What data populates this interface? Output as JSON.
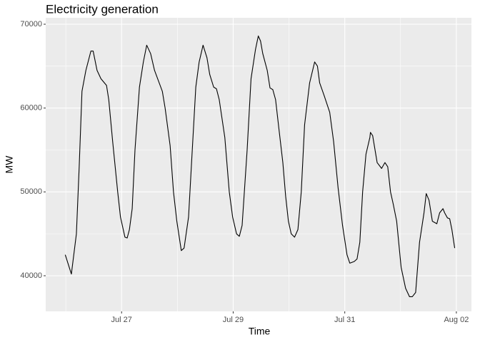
{
  "chart_data": {
    "type": "line",
    "title": "Electricity generation",
    "x_label": "Time",
    "y_label": "MW",
    "x": [
      25.99,
      26.1,
      26.19,
      26.24,
      26.29,
      26.36,
      26.45,
      26.49,
      26.56,
      26.63,
      26.73,
      26.77,
      26.84,
      26.93,
      26.98,
      27.06,
      27.1,
      27.14,
      27.19,
      27.24,
      27.32,
      27.39,
      27.45,
      27.52,
      27.59,
      27.73,
      27.78,
      27.83,
      27.87,
      27.93,
      27.99,
      28.07,
      28.12,
      28.2,
      28.25,
      28.33,
      28.39,
      28.46,
      28.53,
      28.58,
      28.65,
      28.7,
      28.75,
      28.85,
      28.93,
      28.99,
      29.06,
      29.11,
      29.16,
      29.25,
      29.32,
      29.4,
      29.45,
      29.49,
      29.53,
      29.61,
      29.66,
      29.71,
      29.76,
      29.82,
      29.89,
      29.94,
      29.99,
      30.04,
      30.1,
      30.16,
      30.22,
      30.28,
      30.37,
      30.46,
      30.51,
      30.55,
      30.63,
      30.73,
      30.8,
      30.88,
      30.96,
      31.04,
      31.09,
      31.17,
      31.22,
      31.27,
      31.32,
      31.38,
      31.45,
      31.46,
      31.5,
      31.58,
      31.66,
      31.72,
      31.77,
      31.82,
      31.87,
      31.93,
      32.01,
      32.09,
      32.16,
      32.21,
      32.27,
      32.34,
      32.42,
      32.46,
      32.51,
      32.57,
      32.65,
      32.7,
      32.76,
      32.79,
      32.84,
      32.88,
      32.92,
      32.97
    ],
    "series": [
      {
        "name": "MW",
        "color": "#000000",
        "values": [
          42500,
          40200,
          45000,
          53000,
          62000,
          64500,
          66800,
          66800,
          64500,
          63500,
          62700,
          61000,
          56000,
          50000,
          47000,
          44600,
          44500,
          45500,
          48000,
          55000,
          62500,
          65500,
          67500,
          66500,
          64500,
          62000,
          60000,
          57500,
          55500,
          50000,
          46500,
          43000,
          43300,
          47000,
          53000,
          62500,
          65500,
          67500,
          66000,
          64000,
          62500,
          62300,
          61000,
          56500,
          50000,
          47000,
          45000,
          44700,
          46000,
          55000,
          63500,
          67000,
          68600,
          68000,
          66500,
          64500,
          62400,
          62200,
          61000,
          57500,
          53500,
          49500,
          46500,
          45000,
          44600,
          45500,
          50000,
          58000,
          63000,
          65500,
          65000,
          63000,
          61500,
          59500,
          56000,
          50500,
          46000,
          42500,
          41500,
          41700,
          42000,
          44000,
          50000,
          54500,
          56500,
          57100,
          56700,
          53500,
          52800,
          53500,
          53000,
          50000,
          48500,
          46500,
          41000,
          38500,
          37500,
          37500,
          38000,
          44000,
          47500,
          49800,
          49000,
          46500,
          46200,
          47500,
          48000,
          47500,
          46900,
          46800,
          45500,
          43300
        ]
      }
    ],
    "xlim": [
      25.64,
      33.27
    ],
    "ylim": [
      35750,
      70765
    ],
    "xticks": [
      {
        "value": 27,
        "label": "Jul 27"
      },
      {
        "value": 29,
        "label": "Jul 29"
      },
      {
        "value": 31,
        "label": "Jul 31"
      },
      {
        "value": 33,
        "label": "Aug 02"
      }
    ],
    "yticks": [
      40000,
      50000,
      60000,
      70000
    ],
    "grid": true
  }
}
